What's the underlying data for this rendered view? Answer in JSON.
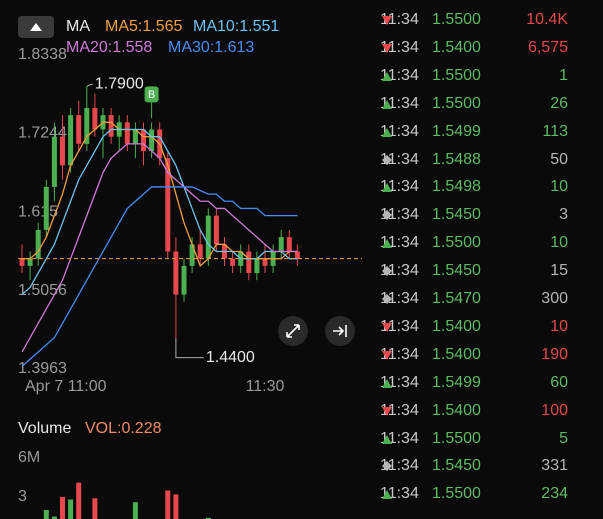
{
  "chart_data": {
    "type": "candlestick",
    "indicator": "MA",
    "series": [
      {
        "name": "MA5:1.565",
        "color": "#f0a040",
        "values": [
          1.55,
          1.55,
          1.56,
          1.58,
          1.61,
          1.64,
          1.68,
          1.7,
          1.72,
          1.73,
          1.74,
          1.74,
          1.73,
          1.73,
          1.73,
          1.72,
          1.72,
          1.71,
          1.68,
          1.64,
          1.6,
          1.57,
          1.54,
          1.55,
          1.57,
          1.57,
          1.56,
          1.56,
          1.55,
          1.55,
          1.55,
          1.55,
          1.55,
          1.56,
          1.56
        ]
      },
      {
        "name": "MA10:1.551",
        "color": "#6cc4f0",
        "values": [
          1.5,
          1.51,
          1.53,
          1.55,
          1.57,
          1.6,
          1.63,
          1.66,
          1.68,
          1.7,
          1.72,
          1.73,
          1.73,
          1.73,
          1.73,
          1.73,
          1.72,
          1.72,
          1.7,
          1.68,
          1.65,
          1.62,
          1.59,
          1.57,
          1.56,
          1.56,
          1.56,
          1.55,
          1.55,
          1.55,
          1.56,
          1.56,
          1.56,
          1.55,
          1.55
        ]
      },
      {
        "name": "MA20:1.558",
        "color": "#d07ad8",
        "values": [
          1.42,
          1.44,
          1.46,
          1.48,
          1.5,
          1.52,
          1.55,
          1.58,
          1.61,
          1.64,
          1.67,
          1.69,
          1.7,
          1.71,
          1.71,
          1.71,
          1.7,
          1.69,
          1.67,
          1.66,
          1.65,
          1.64,
          1.63,
          1.63,
          1.62,
          1.62,
          1.61,
          1.6,
          1.59,
          1.58,
          1.57,
          1.56,
          1.56,
          1.56,
          1.56
        ]
      },
      {
        "name": "MA30:1.613",
        "color": "#4a8cf0",
        "values": [
          1.4,
          1.41,
          1.42,
          1.43,
          1.44,
          1.46,
          1.48,
          1.5,
          1.52,
          1.54,
          1.56,
          1.58,
          1.6,
          1.62,
          1.63,
          1.64,
          1.65,
          1.65,
          1.65,
          1.65,
          1.65,
          1.65,
          1.645,
          1.64,
          1.64,
          1.63,
          1.63,
          1.62,
          1.62,
          1.62,
          1.61,
          1.61,
          1.61,
          1.61,
          1.61
        ]
      }
    ],
    "candles": [
      {
        "o": 1.55,
        "h": 1.57,
        "l": 1.53,
        "c": 1.54
      },
      {
        "o": 1.54,
        "h": 1.56,
        "l": 1.52,
        "c": 1.55
      },
      {
        "o": 1.55,
        "h": 1.6,
        "l": 1.54,
        "c": 1.59
      },
      {
        "o": 1.59,
        "h": 1.66,
        "l": 1.58,
        "c": 1.65
      },
      {
        "o": 1.65,
        "h": 1.74,
        "l": 1.63,
        "c": 1.72
      },
      {
        "o": 1.72,
        "h": 1.75,
        "l": 1.66,
        "c": 1.68
      },
      {
        "o": 1.68,
        "h": 1.76,
        "l": 1.67,
        "c": 1.75
      },
      {
        "o": 1.75,
        "h": 1.77,
        "l": 1.7,
        "c": 1.71
      },
      {
        "o": 1.71,
        "h": 1.79,
        "l": 1.7,
        "c": 1.76
      },
      {
        "o": 1.76,
        "h": 1.78,
        "l": 1.72,
        "c": 1.73
      },
      {
        "o": 1.73,
        "h": 1.76,
        "l": 1.69,
        "c": 1.75
      },
      {
        "o": 1.75,
        "h": 1.76,
        "l": 1.71,
        "c": 1.72
      },
      {
        "o": 1.72,
        "h": 1.75,
        "l": 1.7,
        "c": 1.74
      },
      {
        "o": 1.74,
        "h": 1.75,
        "l": 1.7,
        "c": 1.71
      },
      {
        "o": 1.71,
        "h": 1.74,
        "l": 1.69,
        "c": 1.73
      },
      {
        "o": 1.73,
        "h": 1.74,
        "l": 1.68,
        "c": 1.7
      },
      {
        "o": 1.7,
        "h": 1.74,
        "l": 1.69,
        "c": 1.73
      },
      {
        "o": 1.73,
        "h": 1.74,
        "l": 1.68,
        "c": 1.69
      },
      {
        "o": 1.69,
        "h": 1.7,
        "l": 1.55,
        "c": 1.56
      },
      {
        "o": 1.56,
        "h": 1.58,
        "l": 1.44,
        "c": 1.5
      },
      {
        "o": 1.5,
        "h": 1.55,
        "l": 1.49,
        "c": 1.54
      },
      {
        "o": 1.54,
        "h": 1.58,
        "l": 1.53,
        "c": 1.57
      },
      {
        "o": 1.57,
        "h": 1.59,
        "l": 1.54,
        "c": 1.55
      },
      {
        "o": 1.55,
        "h": 1.62,
        "l": 1.54,
        "c": 1.61
      },
      {
        "o": 1.61,
        "h": 1.62,
        "l": 1.56,
        "c": 1.57
      },
      {
        "o": 1.57,
        "h": 1.58,
        "l": 1.54,
        "c": 1.55
      },
      {
        "o": 1.55,
        "h": 1.56,
        "l": 1.53,
        "c": 1.54
      },
      {
        "o": 1.54,
        "h": 1.57,
        "l": 1.53,
        "c": 1.56
      },
      {
        "o": 1.56,
        "h": 1.57,
        "l": 1.52,
        "c": 1.53
      },
      {
        "o": 1.53,
        "h": 1.56,
        "l": 1.52,
        "c": 1.55
      },
      {
        "o": 1.55,
        "h": 1.57,
        "l": 1.53,
        "c": 1.54
      },
      {
        "o": 1.54,
        "h": 1.57,
        "l": 1.53,
        "c": 1.56
      },
      {
        "o": 1.56,
        "h": 1.59,
        "l": 1.55,
        "c": 1.58
      },
      {
        "o": 1.58,
        "h": 1.59,
        "l": 1.55,
        "c": 1.56
      },
      {
        "o": 1.56,
        "h": 1.57,
        "l": 1.54,
        "c": 1.55
      }
    ],
    "up_color": "#4caf50",
    "down_color": "#e5484d",
    "ylim": [
      1.3963,
      1.8338
    ],
    "yticks": [
      1.8338,
      1.7244,
      1.615,
      1.5056,
      1.3963
    ],
    "xticks": [
      {
        "value": 0,
        "label": "Apr 7 11:00"
      },
      {
        "value": 30,
        "label": "11:30"
      }
    ],
    "annotations": [
      {
        "index": 8,
        "value": 1.79,
        "label": "1.7900"
      },
      {
        "index": 19,
        "value": 1.44,
        "label": "1.4400"
      }
    ],
    "marker": {
      "index": 16,
      "label": "B"
    },
    "volume_title": "Volume",
    "volume_label": "VOL:0.228",
    "volume": [
      0.3,
      0.5,
      1.0,
      2.0,
      1.5,
      3.0,
      2.8,
      4.1,
      1.2,
      2.9,
      0.8,
      1.0,
      0.6,
      0.4,
      2.6,
      0.5,
      0.7,
      1.3,
      3.5,
      3.2,
      1.1,
      0.8,
      0.5,
      1.4,
      0.6,
      0.4,
      0.5,
      0.7,
      0.3,
      0.6,
      0.4,
      0.5,
      1.0,
      0.3,
      0.2
    ],
    "volume_ylim": [
      0,
      6
    ],
    "volume_yticks": [
      {
        "value": 6,
        "label": "6M"
      },
      3
    ]
  },
  "trades": [
    {
      "time": "11:34",
      "price": "1.5500",
      "volume": "10.4K",
      "side": "down"
    },
    {
      "time": "11:34",
      "price": "1.5400",
      "volume": "6,575",
      "side": "down"
    },
    {
      "time": "11:34",
      "price": "1.5500",
      "volume": "1",
      "side": "up"
    },
    {
      "time": "11:34",
      "price": "1.5500",
      "volume": "26",
      "side": "up"
    },
    {
      "time": "11:34",
      "price": "1.5499",
      "volume": "113",
      "side": "up"
    },
    {
      "time": "11:34",
      "price": "1.5488",
      "volume": "50",
      "side": "flat"
    },
    {
      "time": "11:34",
      "price": "1.5498",
      "volume": "10",
      "side": "up"
    },
    {
      "time": "11:34",
      "price": "1.5450",
      "volume": "3",
      "side": "flat"
    },
    {
      "time": "11:34",
      "price": "1.5500",
      "volume": "10",
      "side": "up"
    },
    {
      "time": "11:34",
      "price": "1.5450",
      "volume": "15",
      "side": "flat"
    },
    {
      "time": "11:34",
      "price": "1.5470",
      "volume": "300",
      "side": "flat"
    },
    {
      "time": "11:34",
      "price": "1.5400",
      "volume": "10",
      "side": "down"
    },
    {
      "time": "11:34",
      "price": "1.5400",
      "volume": "190",
      "side": "down"
    },
    {
      "time": "11:34",
      "price": "1.5499",
      "volume": "60",
      "side": "up"
    },
    {
      "time": "11:34",
      "price": "1.5400",
      "volume": "100",
      "side": "down"
    },
    {
      "time": "11:34",
      "price": "1.5500",
      "volume": "5",
      "side": "up"
    },
    {
      "time": "11:34",
      "price": "1.5450",
      "volume": "331",
      "side": "flat"
    },
    {
      "time": "11:34",
      "price": "1.5500",
      "volume": "234",
      "side": "up"
    }
  ]
}
